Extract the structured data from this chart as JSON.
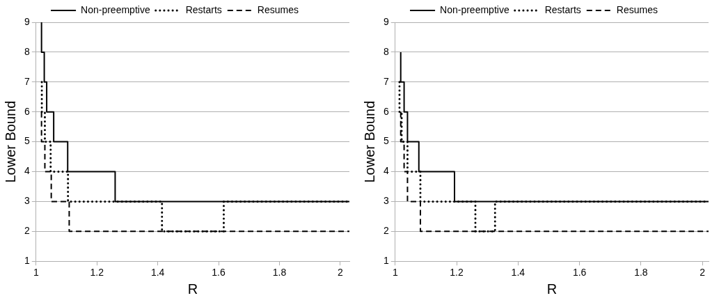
{
  "chart_data": [
    {
      "type": "step",
      "xlabel": "R",
      "ylabel": "Lower Bound",
      "xlim": [
        1,
        2.03
      ],
      "xticks": [
        1,
        1.2,
        1.4,
        1.6,
        1.8,
        2
      ],
      "ylim": [
        1,
        9
      ],
      "yticks": [
        1,
        2,
        3,
        4,
        5,
        6,
        7,
        8,
        9
      ],
      "grid": "y",
      "legend": "top",
      "series": [
        {
          "name": "Non-preemptive",
          "color": "#000000",
          "line_style": "solid",
          "x": [
            1.018,
            1.018,
            1.027,
            1.035,
            1.058,
            1.104,
            1.26,
            2.03
          ],
          "values": [
            9,
            8,
            7,
            6,
            5,
            4,
            3,
            3
          ]
        },
        {
          "name": "Restarts",
          "color": "#000000",
          "line_style": "dotted",
          "x": [
            1.019,
            1.019,
            1.029,
            1.048,
            1.105,
            1.414,
            1.617,
            2.03
          ],
          "values": [
            7,
            6,
            5,
            4,
            3,
            2,
            3,
            3
          ]
        },
        {
          "name": "Resumes",
          "color": "#000000",
          "line_style": "dashed",
          "x": [
            1.018,
            1.018,
            1.029,
            1.05,
            1.109,
            2.03
          ],
          "values": [
            6,
            5,
            4,
            3,
            2,
            2
          ]
        }
      ]
    },
    {
      "type": "step",
      "xlabel": "R",
      "ylabel": "Lower Bound",
      "xlim": [
        1,
        2.02
      ],
      "xticks": [
        1,
        1.2,
        1.4,
        1.6,
        1.8,
        2
      ],
      "ylim": [
        1,
        9
      ],
      "yticks": [
        1,
        2,
        3,
        4,
        5,
        6,
        7,
        8,
        9
      ],
      "grid": "y",
      "legend": "top",
      "series": [
        {
          "name": "Non-preemptive",
          "color": "#000000",
          "line_style": "solid",
          "x": [
            1.018,
            1.018,
            1.029,
            1.04,
            1.077,
            1.193,
            2.02
          ],
          "values": [
            8,
            7,
            6,
            5,
            4,
            3,
            3
          ]
        },
        {
          "name": "Restarts",
          "color": "#000000",
          "line_style": "dotted",
          "x": [
            1.014,
            1.014,
            1.021,
            1.04,
            1.082,
            1.261,
            1.325,
            2.02
          ],
          "values": [
            7,
            6,
            5,
            4,
            3,
            2,
            3,
            3
          ]
        },
        {
          "name": "Resumes",
          "color": "#000000",
          "line_style": "dashed",
          "x": [
            1.018,
            1.018,
            1.029,
            1.04,
            1.082,
            2.02
          ],
          "values": [
            6,
            5,
            4,
            3,
            2,
            2
          ]
        }
      ]
    }
  ]
}
